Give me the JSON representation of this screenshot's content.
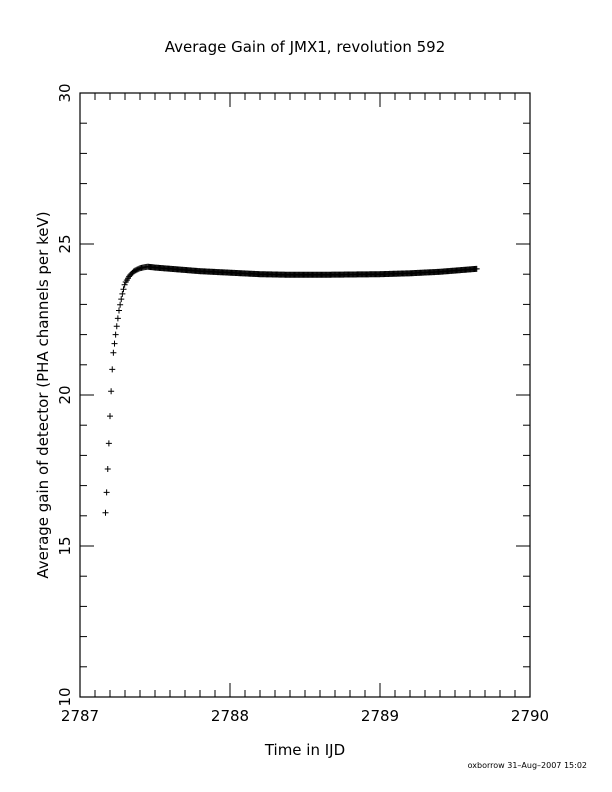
{
  "chart_data": {
    "type": "scatter",
    "title": "Average Gain of JMX1, revolution 592",
    "xlabel": "Time in IJD",
    "ylabel": "Average gain of detector (PHA channels per keV)",
    "xlim": [
      2787,
      2790
    ],
    "ylim": [
      10,
      30
    ],
    "x_ticks": [
      "2787",
      "2788",
      "2789",
      "2790"
    ],
    "y_ticks": [
      "10",
      "15",
      "20",
      "25",
      "30"
    ],
    "marker": "plus",
    "grid": false,
    "legend": "none",
    "series": [
      {
        "x": [
          2787.17,
          2787.18,
          2787.19,
          2787.2,
          2787.21,
          2787.22,
          2787.24,
          2787.26,
          2787.28,
          2787.3,
          2787.33,
          2787.36,
          2787.4,
          2787.45,
          2787.5,
          2787.6,
          2787.8,
          2788.0,
          2788.2,
          2788.4,
          2788.6,
          2788.8,
          2789.0,
          2789.2,
          2789.4,
          2789.55,
          2789.65
        ],
        "y": [
          16.1,
          17.0,
          18.1,
          19.3,
          20.4,
          21.3,
          22.1,
          22.8,
          23.3,
          23.7,
          23.95,
          24.1,
          24.2,
          24.25,
          24.22,
          24.18,
          24.1,
          24.05,
          24.0,
          23.98,
          23.98,
          23.99,
          24.0,
          24.03,
          24.08,
          24.14,
          24.18
        ]
      }
    ]
  },
  "footer": "oxborrow 31–Aug–2007 15:02"
}
